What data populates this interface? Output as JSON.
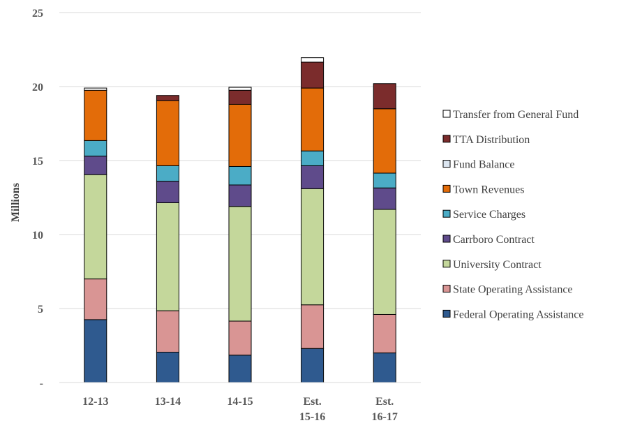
{
  "chart_data": {
    "type": "bar",
    "stacked": true,
    "categories": [
      [
        "12-13"
      ],
      [
        "13-14"
      ],
      [
        "14-15"
      ],
      [
        "Est.",
        "15-16"
      ],
      [
        "Est.",
        "16-17"
      ]
    ],
    "ylabel": "Millions",
    "ylim": [
      0,
      25
    ],
    "yticks": [
      {
        "value": 0,
        "label": "-"
      },
      {
        "value": 5,
        "label": "5"
      },
      {
        "value": 10,
        "label": "10"
      },
      {
        "value": 15,
        "label": "15"
      },
      {
        "value": 20,
        "label": "20"
      },
      {
        "value": 25,
        "label": "25"
      }
    ],
    "grid": true,
    "legend_position": "right",
    "series": [
      {
        "name": "Federal Operating Assistance",
        "color": "#2f5a8f",
        "values": [
          4.25,
          2.05,
          1.85,
          2.3,
          2.0
        ]
      },
      {
        "name": "State Operating Assistance",
        "color": "#d99594",
        "values": [
          2.75,
          2.8,
          2.3,
          2.95,
          2.6
        ]
      },
      {
        "name": "University Contract",
        "color": "#c4d79b",
        "values": [
          7.05,
          7.3,
          7.75,
          7.85,
          7.1
        ]
      },
      {
        "name": "Carrboro Contract",
        "color": "#5f4b8b",
        "values": [
          1.25,
          1.45,
          1.45,
          1.55,
          1.45
        ]
      },
      {
        "name": "Service Charges",
        "color": "#4bacc6",
        "values": [
          1.05,
          1.05,
          1.25,
          1.0,
          1.0
        ]
      },
      {
        "name": "Town Revenues",
        "color": "#e36c09",
        "values": [
          3.4,
          4.4,
          4.2,
          4.25,
          4.35
        ]
      },
      {
        "name": "Fund Balance",
        "color": "#dce6f1",
        "values": [
          0.0,
          0.0,
          0.0,
          0.0,
          0.0
        ]
      },
      {
        "name": "TTA Distribution",
        "color": "#7b2c2c",
        "values": [
          0.0,
          0.35,
          0.95,
          1.75,
          1.7
        ]
      },
      {
        "name": "Transfer from General Fund",
        "color": "#ffffff",
        "values": [
          0.15,
          0.0,
          0.2,
          0.3,
          0.0
        ]
      }
    ]
  }
}
